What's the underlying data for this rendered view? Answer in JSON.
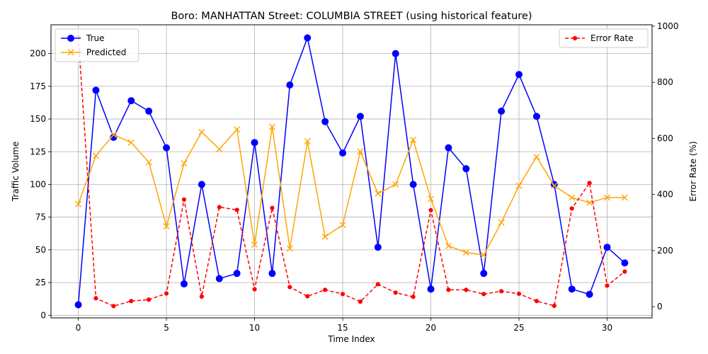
{
  "chart_data": {
    "type": "line",
    "title": "Boro: MANHATTAN Street: COLUMBIA STREET (using historical feature)",
    "xlabel": "Time Index",
    "ylabel": "Traffic Volume",
    "y2label": "Error Rate (%)",
    "xlim": [
      -1.55,
      32.55
    ],
    "ylim": [
      -2,
      222
    ],
    "y2lim": [
      -40,
      1005
    ],
    "xticks": [
      "0",
      "5",
      "10",
      "15",
      "20",
      "25",
      "30"
    ],
    "yticks": [
      "0",
      "25",
      "50",
      "75",
      "100",
      "125",
      "150",
      "175",
      "200"
    ],
    "y2ticks": [
      "0",
      "200",
      "400",
      "600",
      "800",
      "1000"
    ],
    "grid": true,
    "x": [
      0,
      1,
      2,
      3,
      4,
      5,
      6,
      7,
      8,
      9,
      10,
      11,
      12,
      13,
      14,
      15,
      16,
      17,
      18,
      19,
      20,
      21,
      22,
      23,
      24,
      25,
      26,
      27,
      28,
      29,
      30,
      31
    ],
    "series": [
      {
        "name": "True",
        "axis": "left",
        "color": "#0000ff",
        "marker": "circle",
        "values": [
          8,
          172,
          136,
          164,
          156,
          128,
          24,
          100,
          28,
          32,
          132,
          32,
          176,
          212,
          148,
          124,
          152,
          52,
          200,
          100,
          20,
          128,
          112,
          32,
          156,
          184,
          152,
          100,
          20,
          16,
          52,
          40
        ]
      },
      {
        "name": "Predicted",
        "axis": "left",
        "color": "#ffa500",
        "marker": "x",
        "values": [
          85,
          122,
          138,
          132,
          117,
          68,
          116,
          140,
          127,
          142,
          54,
          144,
          51,
          133,
          60,
          69,
          125,
          93,
          100,
          134,
          89,
          53,
          48,
          46,
          71,
          99,
          121,
          99,
          90,
          86,
          90,
          90
        ]
      },
      {
        "name": "Error Rate",
        "axis": "right",
        "color": "#ff0000",
        "marker": "dot",
        "dashed": true,
        "values": [
          962,
          30,
          2,
          20,
          25,
          47,
          382,
          36,
          355,
          345,
          62,
          352,
          70,
          37,
          60,
          45,
          18,
          80,
          50,
          35,
          344,
          60,
          60,
          45,
          55,
          46,
          20,
          3,
          350,
          441,
          75,
          125
        ]
      }
    ],
    "legend_left": {
      "position": "upper-left",
      "entries": [
        "True",
        "Predicted"
      ]
    },
    "legend_right": {
      "position": "upper-right",
      "entries": [
        "Error Rate"
      ]
    }
  }
}
